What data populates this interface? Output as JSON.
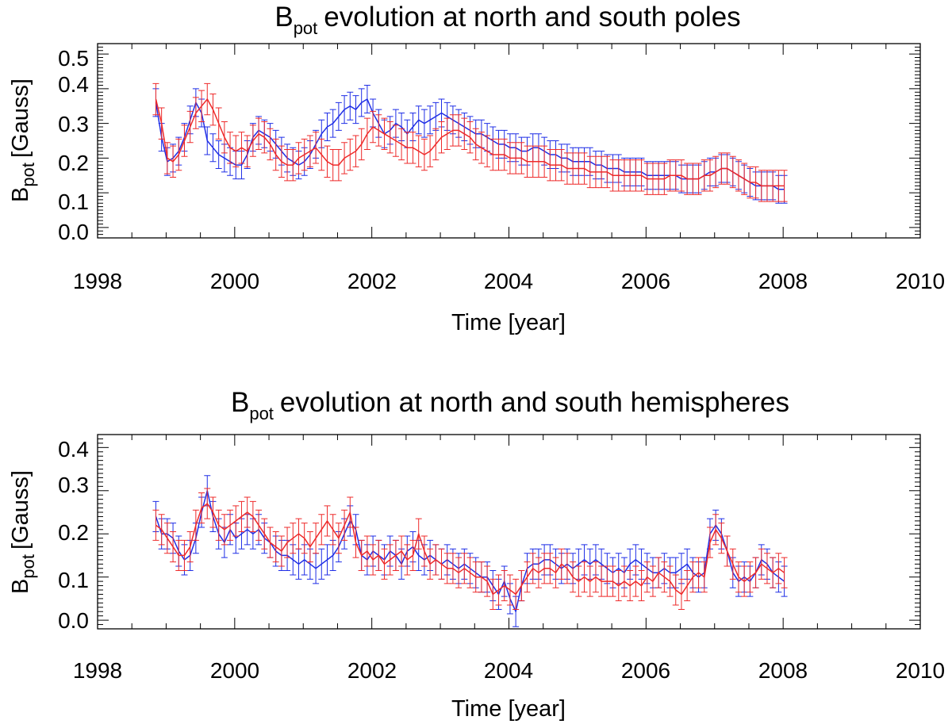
{
  "colors": {
    "blue_series": "#1f2ee6",
    "red_series": "#ee2a2a"
  },
  "chart_data": [
    {
      "type": "line",
      "title_main": "B",
      "title_sub": "pot",
      "title_rest": "evolution at north and south poles",
      "xlabel": "Time [year]",
      "ylabel_main": "B",
      "ylabel_sub": "pot",
      "ylabel_rest": "[Gauss]",
      "xlim": [
        1998,
        2010
      ],
      "ylim": [
        -0.03,
        0.53
      ],
      "x_ticks": [
        "1998",
        "2000",
        "2002",
        "2004",
        "2006",
        "2008",
        "2010"
      ],
      "y_ticks": [
        "0.0",
        "0.1",
        "0.2",
        "0.3",
        "0.4",
        "0.5"
      ],
      "x_start": 1998.85,
      "x_step": 0.08333,
      "series": [
        {
          "name": "blue",
          "color": "#1f2ee6",
          "err": 0.04,
          "values": [
            0.36,
            0.26,
            0.19,
            0.2,
            0.22,
            0.26,
            0.31,
            0.36,
            0.33,
            0.25,
            0.23,
            0.21,
            0.2,
            0.19,
            0.18,
            0.18,
            0.21,
            0.26,
            0.28,
            0.27,
            0.26,
            0.24,
            0.22,
            0.2,
            0.19,
            0.18,
            0.19,
            0.21,
            0.24,
            0.27,
            0.29,
            0.3,
            0.32,
            0.34,
            0.35,
            0.34,
            0.36,
            0.37,
            0.33,
            0.3,
            0.27,
            0.28,
            0.3,
            0.29,
            0.27,
            0.29,
            0.31,
            0.3,
            0.31,
            0.32,
            0.33,
            0.32,
            0.31,
            0.3,
            0.29,
            0.28,
            0.27,
            0.27,
            0.26,
            0.25,
            0.24,
            0.24,
            0.23,
            0.23,
            0.22,
            0.22,
            0.23,
            0.23,
            0.22,
            0.21,
            0.21,
            0.2,
            0.2,
            0.19,
            0.19,
            0.19,
            0.19,
            0.18,
            0.18,
            0.17,
            0.17,
            0.17,
            0.16,
            0.16,
            0.16,
            0.16,
            0.15,
            0.15,
            0.15,
            0.15,
            0.15,
            0.15,
            0.14,
            0.14,
            0.14,
            0.14,
            0.15,
            0.16,
            0.16,
            0.17,
            0.17,
            0.16,
            0.15,
            0.14,
            0.13,
            0.12,
            0.12,
            0.12,
            0.12,
            0.11,
            0.11
          ]
        },
        {
          "name": "red",
          "color": "#ee2a2a",
          "err": 0.045,
          "values": [
            0.37,
            0.3,
            0.2,
            0.19,
            0.21,
            0.25,
            0.29,
            0.33,
            0.35,
            0.37,
            0.34,
            0.3,
            0.26,
            0.23,
            0.22,
            0.23,
            0.22,
            0.25,
            0.27,
            0.26,
            0.24,
            0.21,
            0.19,
            0.18,
            0.18,
            0.2,
            0.21,
            0.22,
            0.23,
            0.21,
            0.19,
            0.18,
            0.18,
            0.2,
            0.21,
            0.22,
            0.24,
            0.27,
            0.29,
            0.28,
            0.27,
            0.26,
            0.25,
            0.24,
            0.23,
            0.23,
            0.22,
            0.21,
            0.22,
            0.24,
            0.26,
            0.27,
            0.28,
            0.28,
            0.27,
            0.26,
            0.24,
            0.23,
            0.22,
            0.21,
            0.21,
            0.21,
            0.2,
            0.2,
            0.2,
            0.19,
            0.19,
            0.19,
            0.19,
            0.18,
            0.18,
            0.18,
            0.17,
            0.17,
            0.17,
            0.17,
            0.16,
            0.16,
            0.16,
            0.16,
            0.15,
            0.15,
            0.15,
            0.15,
            0.15,
            0.15,
            0.14,
            0.14,
            0.14,
            0.14,
            0.15,
            0.15,
            0.15,
            0.14,
            0.14,
            0.14,
            0.15,
            0.15,
            0.16,
            0.17,
            0.17,
            0.16,
            0.15,
            0.14,
            0.13,
            0.13,
            0.12,
            0.12,
            0.12,
            0.12,
            0.12
          ]
        }
      ]
    },
    {
      "type": "line",
      "title_main": "B",
      "title_sub": "pot",
      "title_rest": "evolution at north and south hemispheres",
      "xlabel": "Time [year]",
      "ylabel_main": "B",
      "ylabel_sub": "pot",
      "ylabel_rest": "[Gauss]",
      "xlim": [
        1998,
        2010
      ],
      "ylim": [
        -0.02,
        0.43
      ],
      "x_ticks": [
        "1998",
        "2000",
        "2002",
        "2004",
        "2006",
        "2008",
        "2010"
      ],
      "y_ticks": [
        "0.0",
        "0.1",
        "0.2",
        "0.3",
        "0.4"
      ],
      "x_start": 1998.85,
      "x_step": 0.08333,
      "series": [
        {
          "name": "blue",
          "color": "#1f2ee6",
          "err": 0.035,
          "values": [
            0.24,
            0.2,
            0.2,
            0.19,
            0.16,
            0.14,
            0.15,
            0.19,
            0.25,
            0.3,
            0.24,
            0.2,
            0.18,
            0.21,
            0.19,
            0.2,
            0.21,
            0.2,
            0.21,
            0.19,
            0.18,
            0.16,
            0.15,
            0.15,
            0.14,
            0.13,
            0.14,
            0.13,
            0.12,
            0.13,
            0.14,
            0.15,
            0.17,
            0.2,
            0.23,
            0.21,
            0.15,
            0.14,
            0.16,
            0.15,
            0.14,
            0.16,
            0.15,
            0.13,
            0.16,
            0.17,
            0.15,
            0.14,
            0.15,
            0.14,
            0.13,
            0.14,
            0.13,
            0.12,
            0.13,
            0.12,
            0.11,
            0.1,
            0.1,
            0.08,
            0.06,
            0.09,
            0.05,
            0.02,
            0.08,
            0.12,
            0.13,
            0.13,
            0.14,
            0.14,
            0.13,
            0.12,
            0.13,
            0.12,
            0.13,
            0.14,
            0.13,
            0.14,
            0.13,
            0.12,
            0.11,
            0.12,
            0.11,
            0.13,
            0.14,
            0.13,
            0.12,
            0.11,
            0.11,
            0.12,
            0.11,
            0.11,
            0.12,
            0.13,
            0.11,
            0.1,
            0.11,
            0.2,
            0.22,
            0.2,
            0.16,
            0.11,
            0.09,
            0.1,
            0.09,
            0.11,
            0.14,
            0.13,
            0.11,
            0.1,
            0.09
          ]
        },
        {
          "name": "red",
          "color": "#ee2a2a",
          "err": 0.035,
          "values": [
            0.22,
            0.21,
            0.19,
            0.17,
            0.15,
            0.15,
            0.17,
            0.22,
            0.26,
            0.27,
            0.25,
            0.22,
            0.21,
            0.22,
            0.23,
            0.24,
            0.25,
            0.24,
            0.22,
            0.2,
            0.18,
            0.17,
            0.16,
            0.18,
            0.19,
            0.2,
            0.19,
            0.17,
            0.19,
            0.21,
            0.23,
            0.21,
            0.19,
            0.22,
            0.25,
            0.18,
            0.15,
            0.16,
            0.14,
            0.15,
            0.13,
            0.14,
            0.15,
            0.16,
            0.14,
            0.15,
            0.2,
            0.16,
            0.13,
            0.14,
            0.13,
            0.12,
            0.12,
            0.11,
            0.12,
            0.11,
            0.1,
            0.1,
            0.09,
            0.06,
            0.07,
            0.08,
            0.07,
            0.06,
            0.08,
            0.1,
            0.12,
            0.11,
            0.12,
            0.12,
            0.11,
            0.13,
            0.12,
            0.1,
            0.09,
            0.1,
            0.09,
            0.1,
            0.09,
            0.09,
            0.09,
            0.08,
            0.09,
            0.08,
            0.09,
            0.08,
            0.1,
            0.09,
            0.11,
            0.1,
            0.09,
            0.07,
            0.06,
            0.08,
            0.1,
            0.11,
            0.1,
            0.18,
            0.21,
            0.19,
            0.16,
            0.13,
            0.1,
            0.09,
            0.1,
            0.11,
            0.13,
            0.12,
            0.11,
            0.12,
            0.11
          ]
        }
      ]
    }
  ]
}
